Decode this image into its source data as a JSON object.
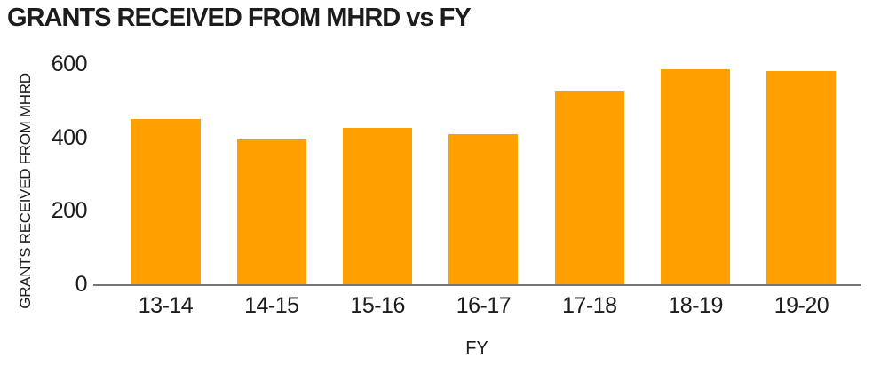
{
  "chart_data": {
    "type": "bar",
    "title": "GRANTS RECEIVED FROM MHRD vs FY",
    "xlabel": "FY",
    "ylabel": "GRANTS RECEIVED FROM MHRD",
    "categories": [
      "13-14",
      "14-15",
      "15-16",
      "16-17",
      "17-18",
      "18-19",
      "19-20"
    ],
    "values": [
      450,
      395,
      425,
      410,
      525,
      585,
      580
    ],
    "ylim": [
      0,
      600
    ],
    "yticks": [
      0,
      200,
      400,
      600
    ],
    "grid": false,
    "legend": false,
    "colors": {
      "bar": "#FFA000",
      "axis_line": "#757575",
      "text": "#1C1C1C",
      "background": "#FFFFFF"
    }
  }
}
